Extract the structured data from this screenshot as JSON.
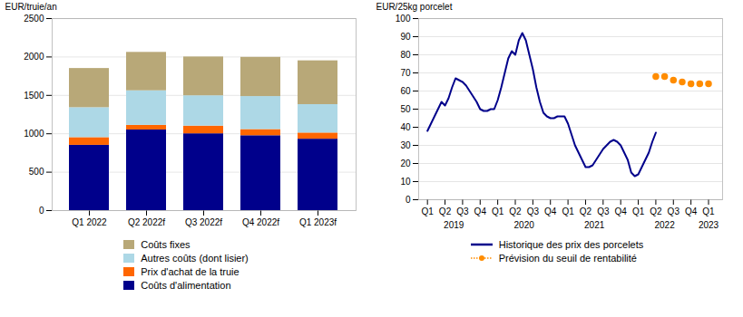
{
  "chart_data": [
    {
      "type": "bar",
      "stacked": true,
      "categories": [
        "Q1 2022",
        "Q2 2022f",
        "Q3 2022f",
        "Q4 2022f",
        "Q1 2023f"
      ],
      "series": [
        {
          "name": "Coûts d'alimentation",
          "color": "#00008B",
          "values": [
            850,
            1050,
            1000,
            975,
            930
          ]
        },
        {
          "name": "Prix d'achat de la truie",
          "color": "#FF6600",
          "values": [
            100,
            60,
            100,
            80,
            80
          ]
        },
        {
          "name": "Autres coûts (dont lisier)",
          "color": "#ADD8E6",
          "values": [
            390,
            450,
            395,
            430,
            370
          ]
        },
        {
          "name": "Coûts fixes",
          "color": "#B8A878",
          "values": [
            510,
            500,
            505,
            510,
            570
          ]
        }
      ],
      "ylabel": "EUR/truie/an",
      "ylim": [
        0,
        2500
      ],
      "yticks": [
        0,
        500,
        1000,
        1500,
        2000,
        2500
      ],
      "grid": true
    },
    {
      "type": "line",
      "series": [
        {
          "name": "Historique des prix des porcelets",
          "color": "#00008B",
          "type": "line",
          "x": [
            0.0,
            0.2,
            0.4,
            0.6,
            0.8,
            1.0,
            1.2,
            1.4,
            1.6,
            1.8,
            2.0,
            2.2,
            2.4,
            2.6,
            2.8,
            3.0,
            3.2,
            3.4,
            3.6,
            3.8,
            4.0,
            4.2,
            4.4,
            4.6,
            4.8,
            5.0,
            5.2,
            5.4,
            5.6,
            5.8,
            6.0,
            6.2,
            6.4,
            6.6,
            6.8,
            7.0,
            7.2,
            7.4,
            7.6,
            7.8,
            8.0,
            8.2,
            8.4,
            8.6,
            8.8,
            9.0,
            9.2,
            9.4,
            9.6,
            9.8,
            10.0,
            10.2,
            10.4,
            10.6,
            10.8,
            11.0,
            11.2,
            11.4,
            11.6,
            11.8,
            12.0,
            12.2,
            12.4,
            12.6,
            12.8,
            13.0
          ],
          "values": [
            38,
            42,
            46,
            50,
            54,
            52,
            56,
            62,
            67,
            66,
            65,
            63,
            60,
            57,
            54,
            50,
            49,
            49,
            50,
            50,
            55,
            62,
            70,
            78,
            82,
            80,
            88,
            92,
            88,
            80,
            72,
            62,
            54,
            48,
            46,
            45,
            45,
            46,
            46,
            46,
            42,
            36,
            30,
            26,
            22,
            18,
            18,
            19,
            22,
            25,
            28,
            30,
            32,
            33,
            32,
            30,
            26,
            22,
            15,
            13,
            14,
            18,
            22,
            26,
            32,
            37
          ]
        },
        {
          "name": "Prévision du seuil de rentabilité",
          "color": "#FF8C00",
          "type": "scatter",
          "marker": "o",
          "x": [
            13.0,
            13.5,
            14.0,
            14.5,
            15.0,
            15.5,
            16.0
          ],
          "values": [
            68,
            68,
            66,
            65,
            64,
            64,
            64
          ]
        }
      ],
      "ylabel": "EUR/25kg porcelet",
      "ylim": [
        0,
        100
      ],
      "yticks": [
        0,
        10,
        20,
        30,
        40,
        50,
        60,
        70,
        80,
        90,
        100
      ],
      "xlim": [
        -0.5,
        16.8
      ],
      "xticks": [
        {
          "value": 0,
          "label": "Q1"
        },
        {
          "value": 1,
          "label": "Q2"
        },
        {
          "value": 2,
          "label": "Q3"
        },
        {
          "value": 3,
          "label": "Q4"
        },
        {
          "value": 4,
          "label": "Q1"
        },
        {
          "value": 5,
          "label": "Q2"
        },
        {
          "value": 6,
          "label": "Q3"
        },
        {
          "value": 7,
          "label": "Q4"
        },
        {
          "value": 8,
          "label": "Q1"
        },
        {
          "value": 9,
          "label": "Q2"
        },
        {
          "value": 10,
          "label": "Q3"
        },
        {
          "value": 11,
          "label": "Q4"
        },
        {
          "value": 12,
          "label": "Q1"
        },
        {
          "value": 13,
          "label": "Q2"
        },
        {
          "value": 14,
          "label": "Q3"
        },
        {
          "value": 15,
          "label": "Q4"
        },
        {
          "value": 16,
          "label": "Q1"
        }
      ],
      "annotations": [
        {
          "text": "2019",
          "x": 1.5
        },
        {
          "text": "2020",
          "x": 5.5
        },
        {
          "text": "2021",
          "x": 9.5
        },
        {
          "text": "2022",
          "x": 13.5
        },
        {
          "text": "2023",
          "x": 16.0
        }
      ],
      "grid": true
    }
  ]
}
